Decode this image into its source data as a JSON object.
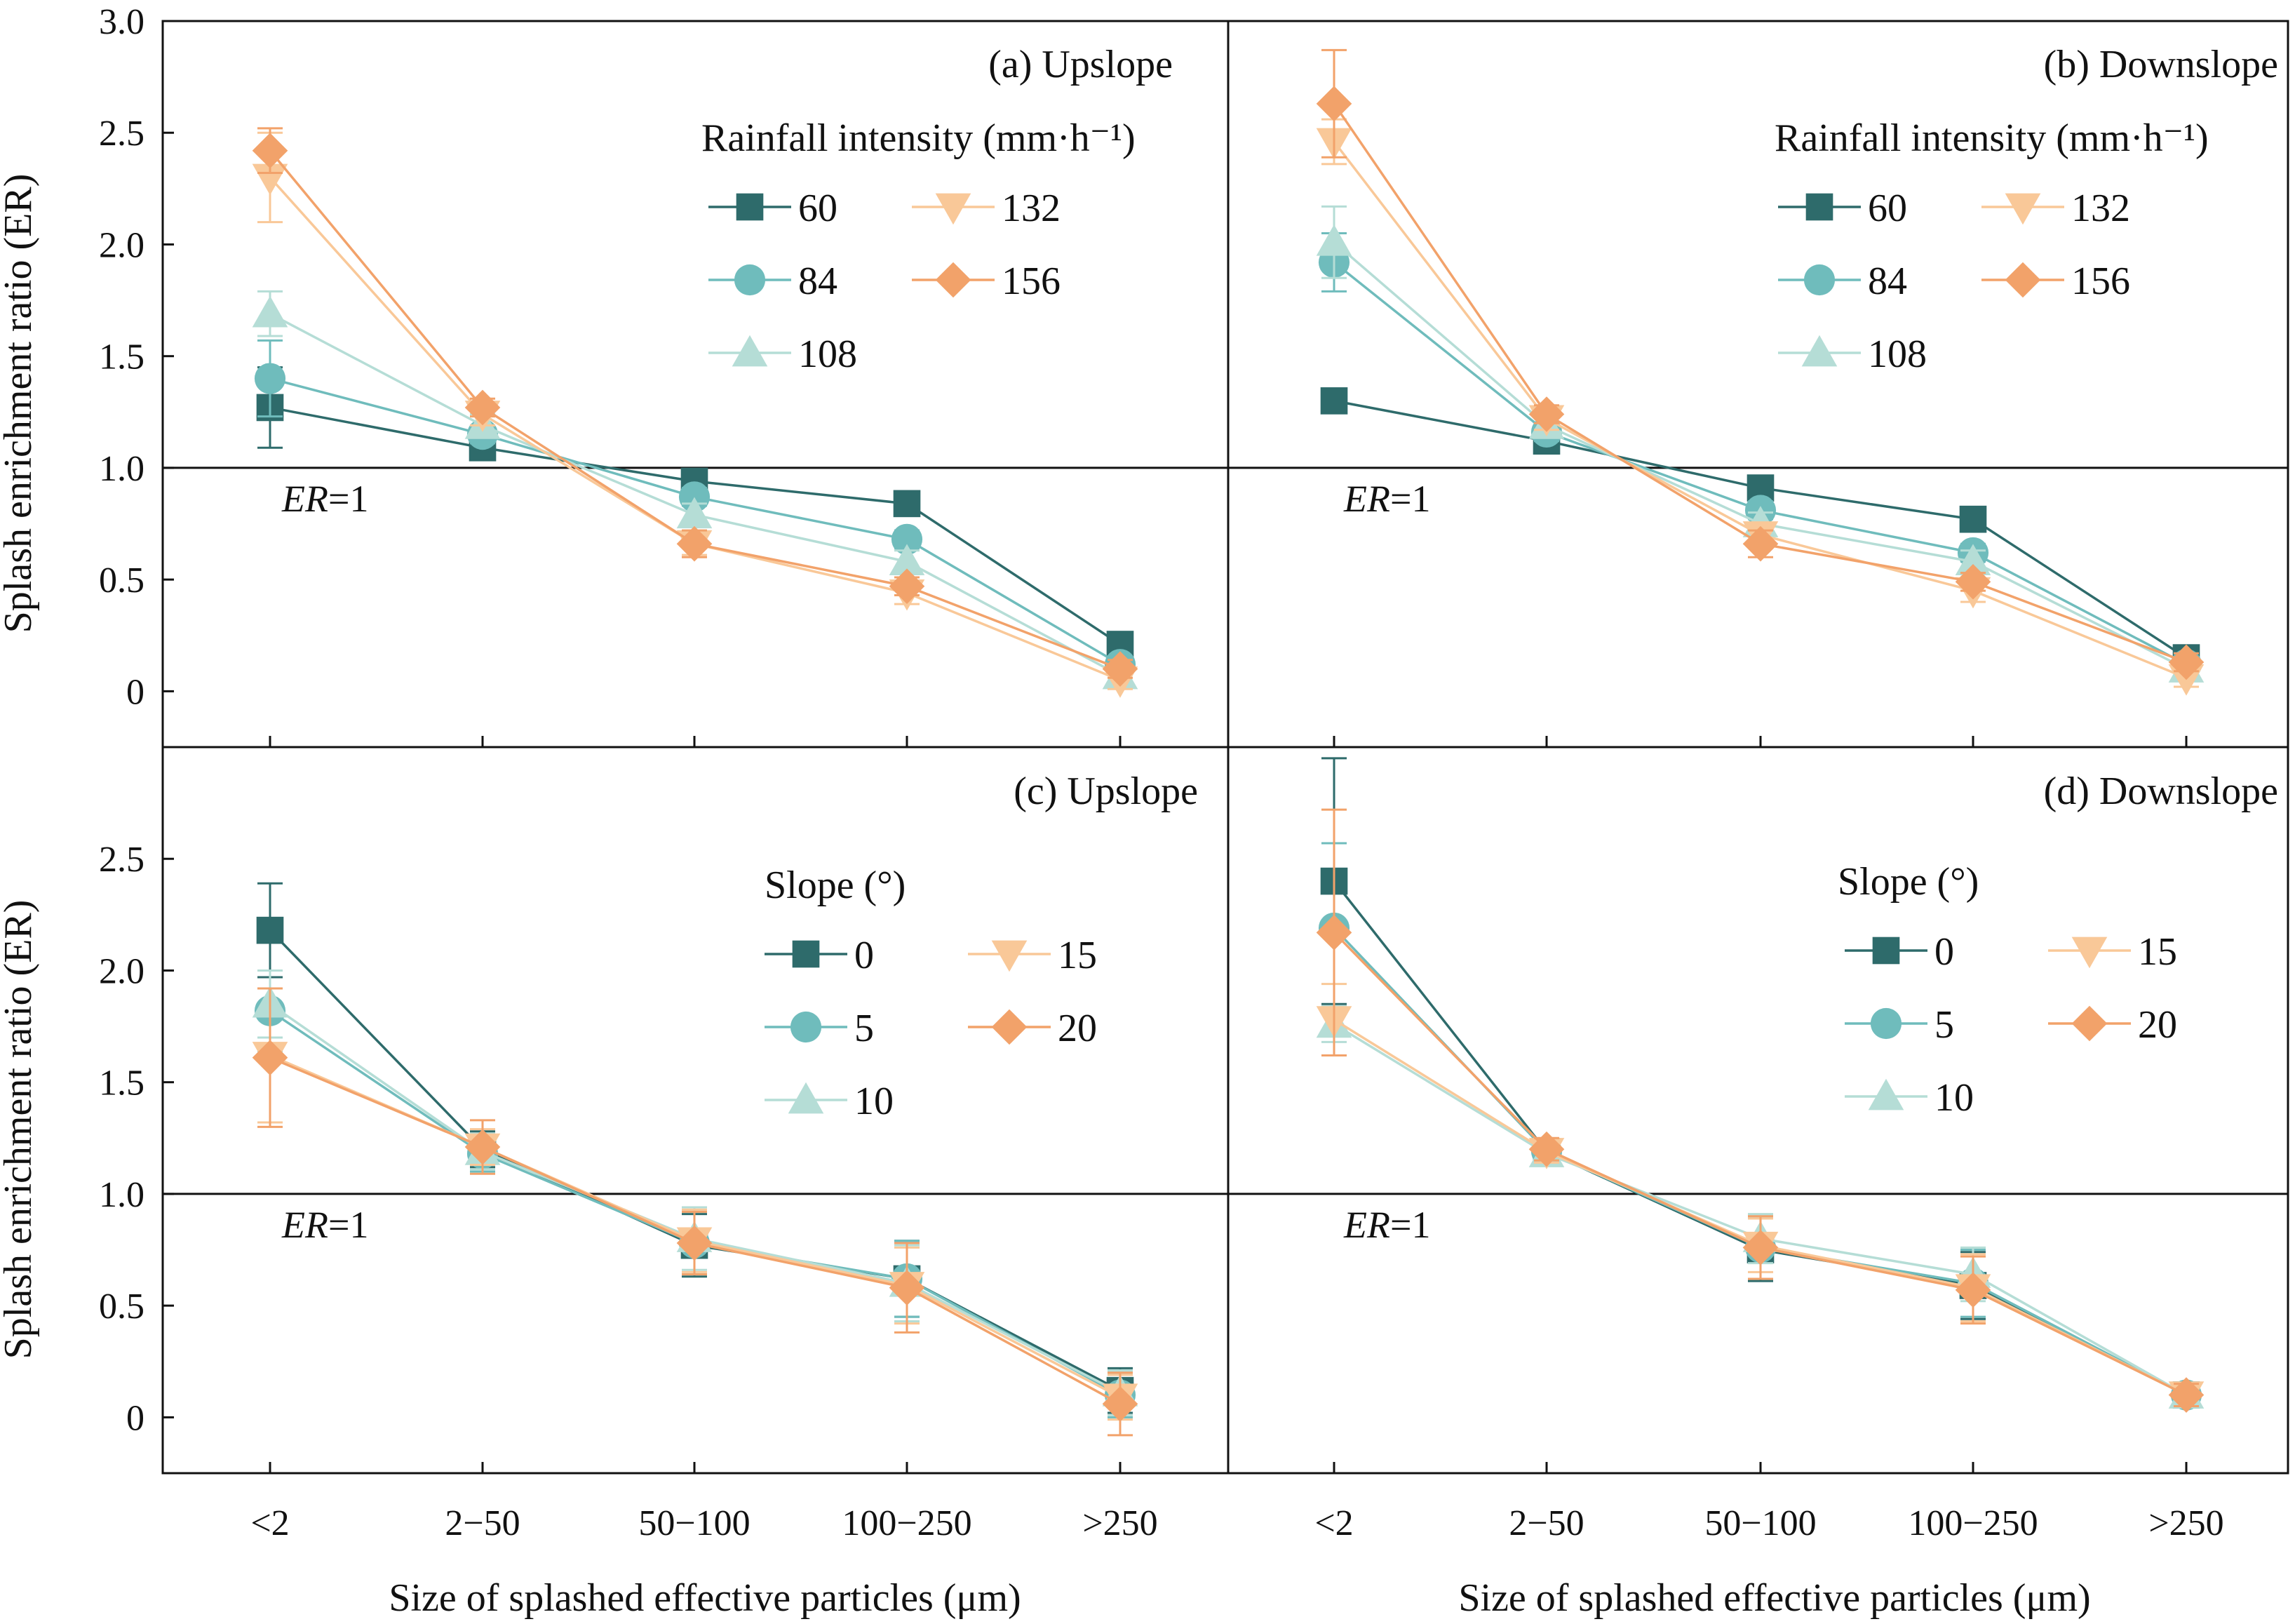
{
  "figure": {
    "ylabel": "Splash enrichment ratio (ER)",
    "xlabel": "Size of splashed effective particles (μm)",
    "ref_label_italic": "ER",
    "ref_label_rest": "=1"
  },
  "chart_data": [
    {
      "type": "line",
      "title": "(a) Upslope",
      "categories": [
        "<2",
        "2−50",
        "50−100",
        "100−250",
        ">250"
      ],
      "ylim": [
        -0.25,
        3.0
      ],
      "yticks": [
        "0",
        "0.5",
        "1.0",
        "1.5",
        "2.0",
        "2.5",
        "3.0"
      ],
      "ytick_values": [
        0,
        0.5,
        1.0,
        1.5,
        2.0,
        2.5,
        3.0
      ],
      "reference_line": 1.0,
      "legend_title": "Rainfall intensity (mm·h⁻¹)",
      "series": [
        {
          "name": "60",
          "values": [
            1.27,
            1.09,
            0.94,
            0.84,
            0.21
          ],
          "errors": [
            0.18,
            0.03,
            0.03,
            0.03,
            0.03
          ]
        },
        {
          "name": "84",
          "values": [
            1.4,
            1.15,
            0.87,
            0.68,
            0.12
          ],
          "errors": [
            0.17,
            0.04,
            0.04,
            0.04,
            0.03
          ]
        },
        {
          "name": "108",
          "values": [
            1.69,
            1.19,
            0.79,
            0.58,
            0.07
          ],
          "errors": [
            0.1,
            0.05,
            0.05,
            0.05,
            0.04
          ]
        },
        {
          "name": "132",
          "values": [
            2.3,
            1.24,
            0.66,
            0.44,
            0.05
          ],
          "errors": [
            0.2,
            0.05,
            0.05,
            0.05,
            0.04
          ]
        },
        {
          "name": "156",
          "values": [
            2.42,
            1.27,
            0.66,
            0.47,
            0.1
          ],
          "errors": [
            0.1,
            0.04,
            0.06,
            0.04,
            0.04
          ]
        }
      ]
    },
    {
      "type": "line",
      "title": "(b) Downslope",
      "categories": [
        "<2",
        "2−50",
        "50−100",
        "100−250",
        ">250"
      ],
      "ylim": [
        -0.25,
        3.0
      ],
      "yticks": [],
      "ytick_values": [],
      "reference_line": 1.0,
      "legend_title": "Rainfall intensity (mm·h⁻¹)",
      "series": [
        {
          "name": "60",
          "values": [
            1.3,
            1.12,
            0.91,
            0.77,
            0.15
          ],
          "errors": [
            0.03,
            0.03,
            0.03,
            0.03,
            0.03
          ]
        },
        {
          "name": "84",
          "values": [
            1.92,
            1.16,
            0.81,
            0.62,
            0.12
          ],
          "errors": [
            0.13,
            0.04,
            0.04,
            0.04,
            0.03
          ]
        },
        {
          "name": "108",
          "values": [
            2.01,
            1.19,
            0.75,
            0.58,
            0.1
          ],
          "errors": [
            0.16,
            0.05,
            0.05,
            0.05,
            0.04
          ]
        },
        {
          "name": "132",
          "values": [
            2.46,
            1.22,
            0.7,
            0.45,
            0.06
          ],
          "errors": [
            0.1,
            0.05,
            0.05,
            0.05,
            0.04
          ]
        },
        {
          "name": "156",
          "values": [
            2.63,
            1.24,
            0.66,
            0.49,
            0.13
          ],
          "errors": [
            0.24,
            0.04,
            0.06,
            0.04,
            0.04
          ]
        }
      ]
    },
    {
      "type": "line",
      "title": "(c) Upslope",
      "categories": [
        "<2",
        "2−50",
        "50−100",
        "100−250",
        ">250"
      ],
      "ylim": [
        -0.25,
        3.0
      ],
      "yticks": [
        "0",
        "0.5",
        "1.0",
        "1.5",
        "2.0",
        "2.5"
      ],
      "ytick_values": [
        0,
        0.5,
        1.0,
        1.5,
        2.0,
        2.5
      ],
      "reference_line": 1.0,
      "legend_title": "Slope (°)",
      "series": [
        {
          "name": "0",
          "values": [
            2.18,
            1.2,
            0.77,
            0.62,
            0.12
          ],
          "errors": [
            0.21,
            0.08,
            0.14,
            0.17,
            0.1
          ]
        },
        {
          "name": "5",
          "values": [
            1.82,
            1.18,
            0.78,
            0.62,
            0.1
          ],
          "errors": [
            0.18,
            0.08,
            0.14,
            0.17,
            0.1
          ]
        },
        {
          "name": "10",
          "values": [
            1.85,
            1.19,
            0.8,
            0.6,
            0.11
          ],
          "errors": [
            0.15,
            0.08,
            0.14,
            0.17,
            0.1
          ]
        },
        {
          "name": "15",
          "values": [
            1.62,
            1.21,
            0.79,
            0.59,
            0.09
          ],
          "errors": [
            0.3,
            0.08,
            0.14,
            0.17,
            0.1
          ]
        },
        {
          "name": "20",
          "values": [
            1.61,
            1.21,
            0.78,
            0.58,
            0.06
          ],
          "errors": [
            0.31,
            0.12,
            0.14,
            0.2,
            0.14
          ]
        }
      ]
    },
    {
      "type": "line",
      "title": "(d) Downslope",
      "categories": [
        "<2",
        "2−50",
        "50−100",
        "100−250",
        ">250"
      ],
      "ylim": [
        -0.25,
        3.0
      ],
      "yticks": [],
      "ytick_values": [],
      "reference_line": 1.0,
      "legend_title": "Slope (°)",
      "series": [
        {
          "name": "0",
          "values": [
            2.4,
            1.19,
            0.75,
            0.59,
            0.1
          ],
          "errors": [
            0.55,
            0.05,
            0.14,
            0.15,
            0.05
          ]
        },
        {
          "name": "5",
          "values": [
            2.19,
            1.19,
            0.76,
            0.6,
            0.1
          ],
          "errors": [
            0.38,
            0.05,
            0.14,
            0.15,
            0.05
          ]
        },
        {
          "name": "10",
          "values": [
            1.76,
            1.18,
            0.8,
            0.64,
            0.1
          ],
          "errors": [
            0.08,
            0.05,
            0.11,
            0.12,
            0.05
          ]
        },
        {
          "name": "15",
          "values": [
            1.78,
            1.19,
            0.77,
            0.58,
            0.1
          ],
          "errors": [
            0.16,
            0.05,
            0.12,
            0.15,
            0.05
          ]
        },
        {
          "name": "20",
          "values": [
            2.17,
            1.2,
            0.76,
            0.57,
            0.1
          ],
          "errors": [
            0.55,
            0.05,
            0.14,
            0.15,
            0.05
          ]
        }
      ]
    }
  ],
  "style": {
    "series_colors": [
      "#2e6b6b",
      "#6fbcbc",
      "#b5ddd6",
      "#f9c898",
      "#f2a26a"
    ],
    "series_markers": [
      "square",
      "circle",
      "triangle-up",
      "triangle-down",
      "diamond"
    ],
    "axis_color": "#111111"
  }
}
